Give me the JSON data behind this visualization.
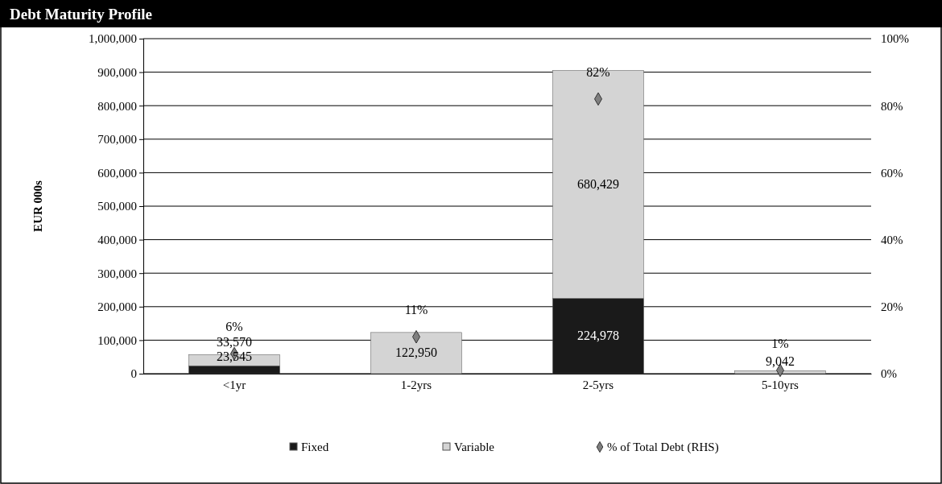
{
  "chart_data": {
    "type": "bar",
    "title": "Debt Maturity Profile",
    "ylabel": "EUR 000s",
    "categories": [
      "<1yr",
      "1-2yrs",
      "2-5yrs",
      "5-10yrs"
    ],
    "stacked": true,
    "series": [
      {
        "name": "Fixed",
        "color": "#1a1a1a",
        "values": [
          23545,
          null,
          224978,
          null
        ],
        "value_labels": [
          "23,545",
          null,
          "224,978",
          null
        ]
      },
      {
        "name": "Variable",
        "color": "#d4d4d4",
        "values": [
          33570,
          122950,
          680429,
          9042
        ],
        "value_labels": [
          "33,570",
          "122,950",
          "680,429",
          "9,042"
        ]
      },
      {
        "name": "% of Total Debt (RHS)",
        "type": "scatter",
        "axis": "y2",
        "color": "#7f7f7f",
        "marker": "diamond",
        "values": [
          6,
          11,
          82,
          1
        ],
        "value_labels": [
          "6%",
          "11%",
          "82%",
          "1%"
        ]
      }
    ],
    "ylim": [
      0,
      1000000
    ],
    "yticks": [
      {
        "value": 0,
        "label": "0"
      },
      {
        "value": 100000,
        "label": "100,000"
      },
      {
        "value": 200000,
        "label": "200,000"
      },
      {
        "value": 300000,
        "label": "300,000"
      },
      {
        "value": 400000,
        "label": "400,000"
      },
      {
        "value": 500000,
        "label": "500,000"
      },
      {
        "value": 600000,
        "label": "600,000"
      },
      {
        "value": 700000,
        "label": "700,000"
      },
      {
        "value": 800000,
        "label": "800,000"
      },
      {
        "value": 900000,
        "label": "900,000"
      },
      {
        "value": 1000000,
        "label": "1,000,000"
      }
    ],
    "y2lim": [
      0,
      100
    ],
    "y2ticks": [
      {
        "value": 0,
        "label": "0%"
      },
      {
        "value": 20,
        "label": "20%"
      },
      {
        "value": 40,
        "label": "40%"
      },
      {
        "value": 60,
        "label": "60%"
      },
      {
        "value": 80,
        "label": "80%"
      },
      {
        "value": 100,
        "label": "100%"
      }
    ],
    "grid": "y",
    "legend": "bottom"
  }
}
